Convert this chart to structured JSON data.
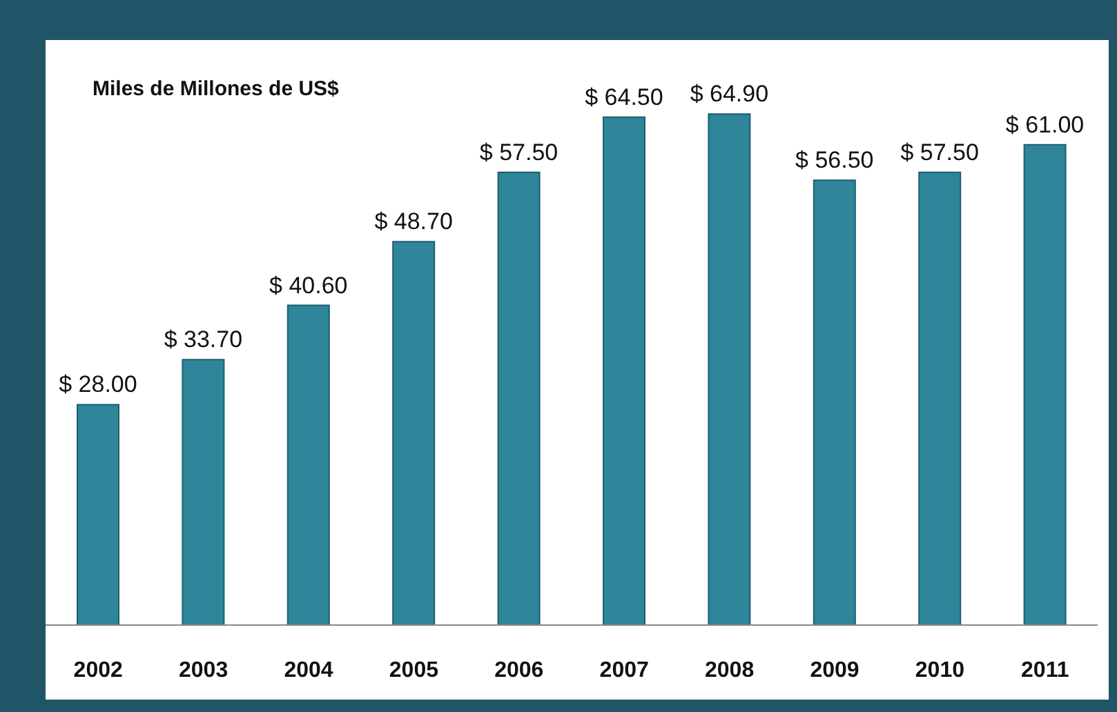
{
  "chart_data": {
    "type": "bar",
    "title": "Miles de Millones de US$",
    "categories": [
      "2002",
      "2003",
      "2004",
      "2005",
      "2006",
      "2007",
      "2008",
      "2009",
      "2010",
      "2011"
    ],
    "values": [
      28.0,
      33.7,
      40.6,
      48.7,
      57.5,
      64.5,
      64.9,
      56.5,
      57.5,
      61.0
    ],
    "value_labels": [
      "$ 28.00",
      "$ 33.70",
      "$ 40.60",
      "$ 48.70",
      "$ 57.50",
      "$ 64.50",
      "$ 64.90",
      "$ 56.50",
      "$ 57.50",
      "$ 61.00"
    ],
    "color": "#2f8599",
    "tick_labels": "x"
  }
}
